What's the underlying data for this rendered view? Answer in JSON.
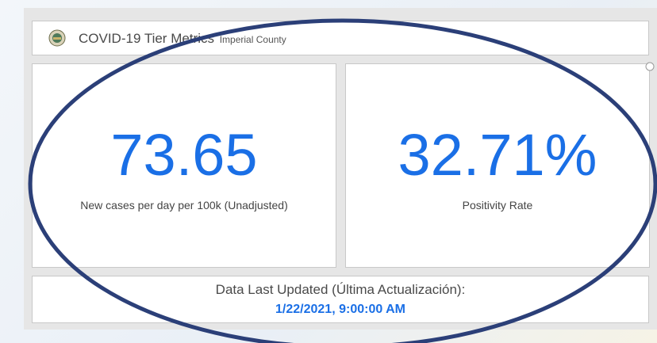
{
  "header": {
    "title": "COVID-19 Tier Metrics",
    "subtitle": "Imperial County"
  },
  "indicators": [
    {
      "value": "73.65",
      "label": "New cases per day per 100k (Unadjusted)"
    },
    {
      "value": "32.71%",
      "label": "Positivity Rate"
    }
  ],
  "footer": {
    "label": "Data Last Updated (Última Actualización):",
    "value": "1/22/2021, 9:00:00 AM"
  }
}
